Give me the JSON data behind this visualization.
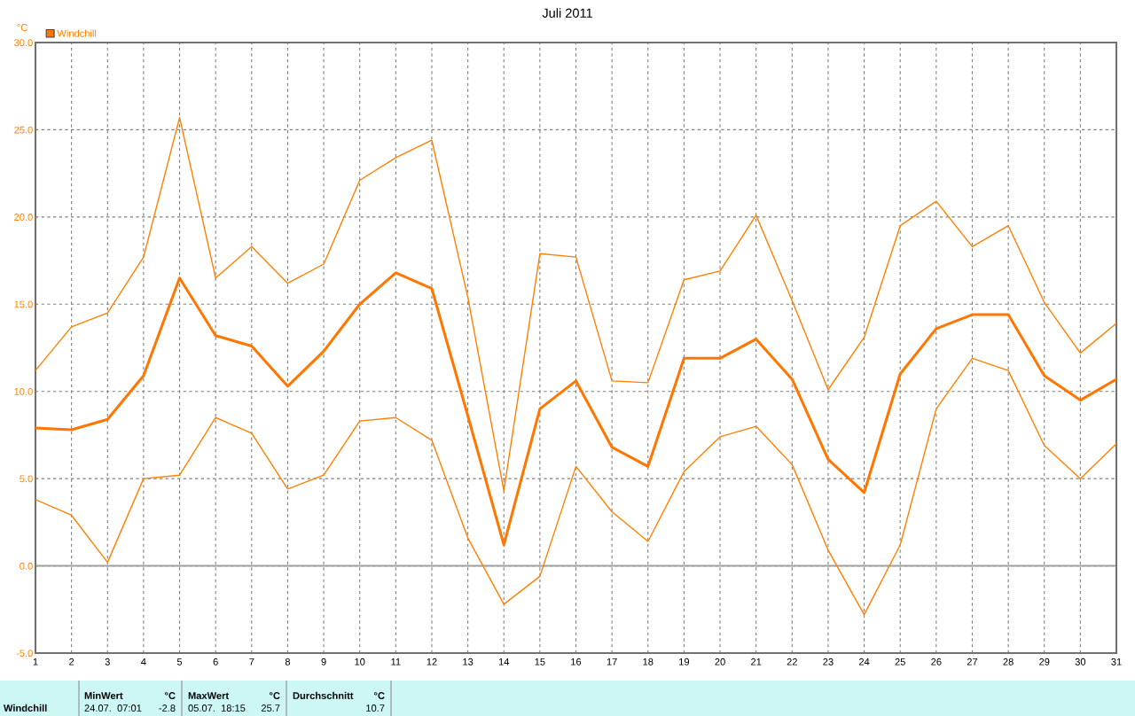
{
  "chart_data": {
    "type": "line",
    "title": "Juli 2011",
    "ylabel": "°C",
    "x": [
      1,
      2,
      3,
      4,
      5,
      6,
      7,
      8,
      9,
      10,
      11,
      12,
      13,
      14,
      15,
      16,
      17,
      18,
      19,
      20,
      21,
      22,
      23,
      24,
      25,
      26,
      27,
      28,
      29,
      30,
      31
    ],
    "series": [
      {
        "color": "#ff8000",
        "values": [
          11.2,
          13.7,
          14.5,
          17.7,
          25.7,
          16.5,
          18.3,
          16.2,
          17.3,
          22.1,
          23.4,
          24.4,
          15.4,
          4.3,
          17.9,
          17.7,
          10.6,
          10.5,
          16.4,
          16.9,
          20.1,
          15.2,
          10.1,
          13.1,
          19.5,
          20.9,
          18.3,
          19.5,
          15.1,
          12.2,
          13.9
        ]
      },
      {
        "name": "Windchill",
        "color": "#ff7700",
        "values": [
          7.9,
          7.8,
          8.4,
          10.9,
          16.5,
          13.2,
          12.6,
          10.3,
          12.3,
          15.0,
          16.8,
          15.9,
          8.6,
          1.2,
          9.0,
          10.6,
          6.8,
          5.7,
          11.9,
          11.9,
          13.0,
          10.7,
          6.1,
          4.2,
          11.0,
          13.6,
          14.4,
          14.4,
          10.9,
          9.5,
          10.7
        ]
      },
      {
        "color": "#ff8000",
        "values": [
          3.8,
          2.9,
          0.2,
          5.0,
          5.2,
          8.5,
          7.6,
          4.4,
          5.2,
          8.3,
          8.5,
          7.2,
          1.6,
          -2.2,
          -0.6,
          5.7,
          3.1,
          1.4,
          5.4,
          7.4,
          8.0,
          5.8,
          0.9,
          -2.8,
          1.2,
          9.0,
          11.9,
          11.2,
          6.9,
          5.0,
          7.0
        ]
      }
    ],
    "xlim": [
      1,
      31
    ],
    "xticks": [
      1,
      2,
      3,
      4,
      5,
      6,
      7,
      8,
      9,
      10,
      11,
      12,
      13,
      14,
      15,
      16,
      17,
      18,
      19,
      20,
      21,
      22,
      23,
      24,
      25,
      26,
      27,
      28,
      29,
      30,
      31
    ],
    "ylim": [
      -5,
      30
    ],
    "yticks": [
      {
        "value": -5,
        "label": "-5.0"
      },
      {
        "value": 0,
        "label": "0.0"
      },
      {
        "value": 5,
        "label": "5.0"
      },
      {
        "value": 10,
        "label": "10.0"
      },
      {
        "value": 15,
        "label": "15.0"
      },
      {
        "value": 20,
        "label": "20.0"
      },
      {
        "value": 25,
        "label": "25.0"
      },
      {
        "value": 30,
        "label": "30.0"
      }
    ],
    "ref_lines": [
      {
        "axis": "y",
        "value": 0,
        "color": "#a0a0a0",
        "line_style": "solid"
      }
    ],
    "grid": true,
    "legend": "top left",
    "marker": "none",
    "line_style": "solid",
    "annotations": [
      "Windchill",
      "MinWert",
      "°C",
      "24.07.  07:01",
      "-2.8",
      "MaxWert",
      "°C",
      "05.07.  18:15",
      "25.7",
      "Durchschnitt",
      "°C",
      "10.7"
    ]
  }
}
